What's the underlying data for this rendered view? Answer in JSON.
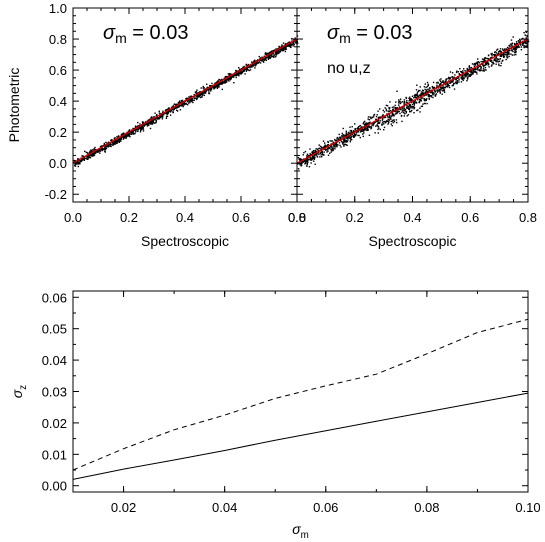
{
  "chart_data": [
    {
      "type": "scatter",
      "panel": "top-left",
      "annotations": [
        "σm = 0.03"
      ],
      "annotation_lines": [
        {
          "sym": "σ",
          "sub": "m",
          "rest": " = 0.03"
        }
      ],
      "xlabel": "Spectroscopic",
      "ylabel": "Photometric",
      "xlim": [
        0.0,
        0.8
      ],
      "ylim": [
        -0.25,
        1.0
      ],
      "x_ticks": [
        "0.0",
        "0.2",
        "0.4",
        "0.6",
        "0.8"
      ],
      "y_ticks": [
        "-0.2",
        "0.0",
        "0.2",
        "0.4",
        "0.6",
        "0.8",
        "1.0"
      ],
      "scatter_sigma": 0.012,
      "fit_line": {
        "x": [
          0.0,
          0.8
        ],
        "y": [
          0.0,
          0.8
        ],
        "color": "#cc0000"
      }
    },
    {
      "type": "scatter",
      "panel": "top-right",
      "annotations": [
        "σm = 0.03",
        "no u,z"
      ],
      "annotation_lines": [
        {
          "sym": "σ",
          "sub": "m",
          "rest": " = 0.03"
        },
        {
          "text": "no u,z"
        }
      ],
      "xlabel": "Spectroscopic",
      "xlim": [
        0.0,
        0.8
      ],
      "ylim": [
        -0.25,
        1.0
      ],
      "x_ticks": [
        "0.0",
        "0.2",
        "0.4",
        "0.6",
        "0.8"
      ],
      "scatter_sigma": 0.022,
      "fit_line": {
        "x": [
          0.0,
          0.8
        ],
        "y": [
          0.0,
          0.8
        ],
        "color": "#cc0000"
      }
    },
    {
      "type": "line",
      "panel": "bottom",
      "xlabel": "σm",
      "xlabel_parts": {
        "sym": "σ",
        "sub": "m"
      },
      "ylabel": "σz",
      "ylabel_parts": {
        "sym": "σ",
        "sub": "z"
      },
      "xlim": [
        0.01,
        0.1
      ],
      "ylim": [
        -0.002,
        0.062
      ],
      "x_ticks": [
        "0.02",
        "0.04",
        "0.06",
        "0.08",
        "0.10"
      ],
      "y_ticks": [
        "0.00",
        "0.01",
        "0.02",
        "0.03",
        "0.04",
        "0.05",
        "0.06"
      ],
      "series": [
        {
          "style": "solid",
          "x": [
            0.01,
            0.02,
            0.03,
            0.04,
            0.05,
            0.06,
            0.07,
            0.08,
            0.09,
            0.1
          ],
          "y": [
            0.002,
            0.0053,
            0.0082,
            0.0112,
            0.0145,
            0.0175,
            0.0205,
            0.0235,
            0.0265,
            0.0295
          ]
        },
        {
          "style": "dashed",
          "x": [
            0.01,
            0.02,
            0.03,
            0.04,
            0.05,
            0.06,
            0.07,
            0.08,
            0.09,
            0.1
          ],
          "y": [
            0.005,
            0.0118,
            0.0178,
            0.0225,
            0.0278,
            0.0318,
            0.0355,
            0.042,
            0.0488,
            0.053
          ]
        }
      ]
    }
  ]
}
